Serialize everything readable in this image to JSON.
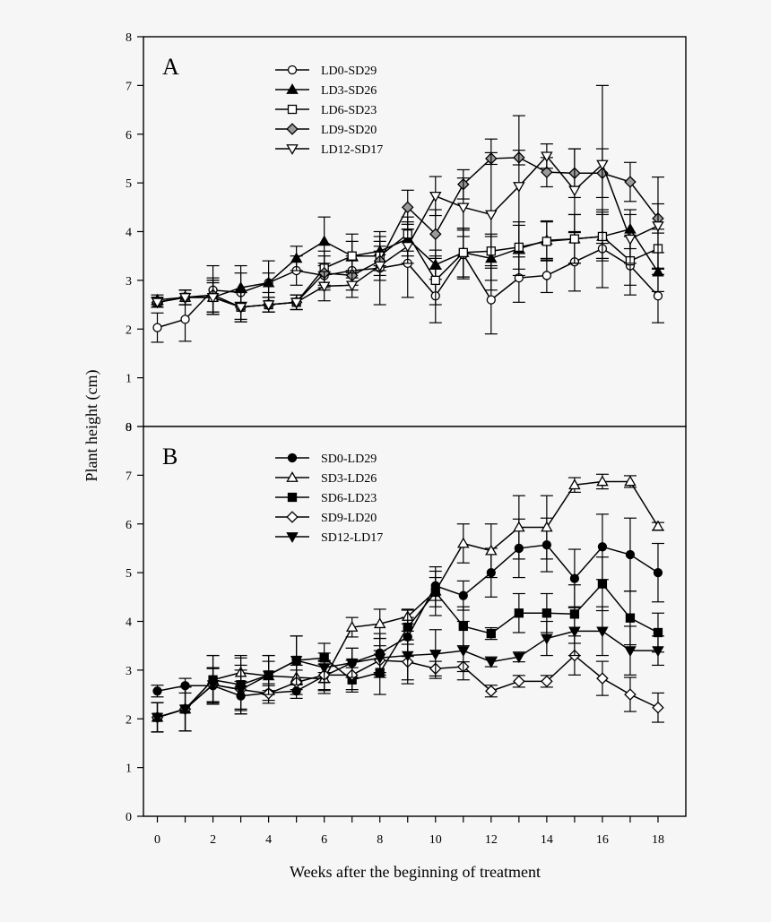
{
  "page": {
    "background": "#f6f6f6"
  },
  "labels": {
    "ylabel": "Plant height (cm)",
    "xlabel": "Weeks after the beginning of treatment"
  },
  "chart_data": [
    {
      "type": "line",
      "panel": "A",
      "xlim": [
        -0.5,
        19
      ],
      "ylim": [
        0,
        8
      ],
      "x": [
        0,
        1,
        2,
        3,
        4,
        5,
        6,
        7,
        8,
        9,
        10,
        11,
        12,
        13,
        14,
        15,
        16,
        17,
        18
      ],
      "xticks": [
        0,
        2,
        4,
        6,
        8,
        10,
        12,
        14,
        16,
        18
      ],
      "yticks": [
        0,
        1,
        2,
        3,
        4,
        5,
        6,
        7,
        8
      ],
      "legend_position": "top-left",
      "series": [
        {
          "name": "LD0-SD29",
          "marker": "circle",
          "fill": "open",
          "values": [
            2.03,
            2.2,
            2.8,
            2.75,
            2.95,
            3.2,
            3.1,
            3.2,
            3.25,
            3.35,
            2.68,
            3.53,
            2.6,
            3.05,
            3.1,
            3.38,
            3.65,
            3.3,
            2.68
          ],
          "errors": [
            0.3,
            0.45,
            0.5,
            0.55,
            0.45,
            0.3,
            0.25,
            0.3,
            0.75,
            0.7,
            0.55,
            0.5,
            0.7,
            0.5,
            0.35,
            0.6,
            0.8,
            0.6,
            0.55
          ]
        },
        {
          "name": "LD3-SD26",
          "marker": "triangle-up",
          "fill": "filled",
          "values": [
            2.6,
            2.65,
            2.65,
            2.85,
            2.95,
            3.45,
            3.8,
            3.5,
            3.6,
            3.85,
            3.32,
            3.57,
            3.45,
            3.65,
            3.82,
            3.85,
            3.9,
            4.05,
            3.17
          ],
          "errors": [
            0.1,
            0.15,
            0.3,
            0.3,
            0.2,
            0.25,
            0.5,
            0.45,
            0.3,
            0.35,
            0.3,
            0.5,
            0.45,
            0.55,
            0.4,
            0.5,
            0.45,
            0.4,
            0.4
          ]
        },
        {
          "name": "LD6-SD23",
          "marker": "square",
          "fill": "open",
          "values": [
            2.55,
            2.65,
            2.65,
            2.45,
            2.5,
            2.55,
            3.25,
            3.5,
            3.5,
            3.95,
            3.0,
            3.57,
            3.6,
            3.68,
            3.8,
            3.85,
            3.9,
            3.4,
            3.65
          ],
          "errors": [
            0.1,
            0.15,
            0.35,
            0.3,
            0.15,
            0.15,
            0.35,
            0.3,
            0.3,
            0.35,
            0.5,
            0.5,
            0.35,
            0.45,
            0.4,
            0.5,
            0.5,
            0.5,
            0.4
          ]
        },
        {
          "name": "LD9-SD20",
          "marker": "diamond",
          "fill": "gray",
          "values": [
            2.55,
            2.65,
            2.7,
            2.45,
            2.5,
            2.55,
            3.15,
            3.1,
            3.4,
            4.5,
            3.95,
            4.97,
            5.5,
            5.52,
            5.22,
            5.2,
            5.2,
            5.02,
            4.27
          ],
          "errors": [
            0.1,
            0.15,
            0.35,
            0.3,
            0.15,
            0.15,
            0.35,
            0.3,
            0.3,
            0.35,
            0.5,
            0.3,
            0.12,
            0.15,
            0.3,
            0.5,
            0.5,
            0.4,
            0.3
          ]
        },
        {
          "name": "LD12-SD17",
          "marker": "triangle-down",
          "fill": "open",
          "values": [
            2.55,
            2.65,
            2.65,
            2.45,
            2.5,
            2.55,
            2.88,
            2.9,
            3.3,
            3.7,
            4.73,
            4.5,
            4.35,
            4.93,
            5.55,
            4.85,
            5.38,
            3.85,
            4.12
          ],
          "errors": [
            0.1,
            0.15,
            0.35,
            0.3,
            0.15,
            0.15,
            0.3,
            0.25,
            0.3,
            0.35,
            0.4,
            0.6,
            1.55,
            1.45,
            0.25,
            0.85,
            1.62,
            0.5,
            1.0
          ]
        }
      ]
    },
    {
      "type": "line",
      "panel": "B",
      "xlim": [
        -0.5,
        19
      ],
      "ylim": [
        0,
        8
      ],
      "x": [
        0,
        1,
        2,
        3,
        4,
        5,
        6,
        7,
        8,
        9,
        10,
        11,
        12,
        13,
        14,
        15,
        16,
        17,
        18
      ],
      "xticks": [
        0,
        2,
        4,
        6,
        8,
        10,
        12,
        14,
        16,
        18
      ],
      "yticks": [
        0,
        1,
        2,
        3,
        4,
        5,
        6,
        7,
        8
      ],
      "legend_position": "top-left",
      "series": [
        {
          "name": "SD0-LD29",
          "marker": "circle",
          "fill": "filled",
          "values": [
            2.57,
            2.68,
            2.68,
            2.47,
            2.53,
            2.57,
            2.88,
            3.15,
            3.35,
            3.68,
            4.73,
            4.53,
            5.0,
            5.5,
            5.57,
            4.88,
            5.53,
            5.37,
            5.0
          ],
          "errors": [
            0.12,
            0.15,
            0.35,
            0.3,
            0.15,
            0.15,
            0.3,
            0.3,
            0.4,
            0.4,
            0.3,
            0.3,
            0.5,
            0.6,
            0.55,
            0.6,
            0.67,
            0.75,
            0.6
          ]
        },
        {
          "name": "SD3-LD26",
          "marker": "triangle-up",
          "fill": "open",
          "values": [
            2.03,
            2.2,
            2.8,
            2.95,
            2.88,
            2.85,
            2.82,
            3.88,
            3.95,
            4.1,
            4.62,
            5.6,
            5.45,
            5.93,
            5.93,
            6.8,
            6.87,
            6.87,
            5.95
          ],
          "errors": [
            0.3,
            0.45,
            0.5,
            0.3,
            0.3,
            0.25,
            0.3,
            0.2,
            0.3,
            0.15,
            0.5,
            0.4,
            0.55,
            0.65,
            0.65,
            0.15,
            0.15,
            0.12,
            0.08
          ]
        },
        {
          "name": "SD6-LD23",
          "marker": "square",
          "fill": "filled",
          "values": [
            2.03,
            2.2,
            2.8,
            2.7,
            2.9,
            3.2,
            3.25,
            2.8,
            2.95,
            3.88,
            4.6,
            3.9,
            3.75,
            4.17,
            4.17,
            4.15,
            4.77,
            4.07,
            3.77
          ],
          "errors": [
            0.3,
            0.45,
            0.5,
            0.6,
            0.4,
            0.5,
            0.3,
            0.25,
            0.45,
            0.35,
            0.3,
            0.4,
            0.12,
            0.4,
            0.4,
            0.6,
            0.55,
            0.55,
            0.4
          ]
        },
        {
          "name": "SD9-LD20",
          "marker": "diamond",
          "fill": "open",
          "values": [
            2.03,
            2.2,
            2.7,
            2.6,
            2.52,
            2.75,
            2.9,
            2.9,
            3.2,
            3.17,
            3.03,
            3.07,
            2.57,
            2.77,
            2.77,
            3.3,
            2.83,
            2.5,
            2.23
          ],
          "errors": [
            0.3,
            0.45,
            0.35,
            0.4,
            0.2,
            0.25,
            0.3,
            0.3,
            0.3,
            0.45,
            0.15,
            0.1,
            0.12,
            0.12,
            0.12,
            0.4,
            0.35,
            0.35,
            0.3
          ]
        },
        {
          "name": "SD12-LD17",
          "marker": "triangle-down",
          "fill": "filled",
          "values": [
            2.03,
            2.2,
            2.7,
            2.6,
            2.9,
            3.2,
            3.05,
            3.15,
            3.25,
            3.3,
            3.33,
            3.4,
            3.17,
            3.27,
            3.65,
            3.8,
            3.8,
            3.4,
            3.4
          ],
          "errors": [
            0.3,
            0.45,
            0.35,
            0.5,
            0.4,
            0.5,
            0.3,
            0.3,
            0.4,
            0.5,
            0.5,
            0.6,
            0.1,
            0.1,
            0.35,
            0.5,
            0.5,
            0.5,
            0.3
          ]
        }
      ]
    }
  ]
}
